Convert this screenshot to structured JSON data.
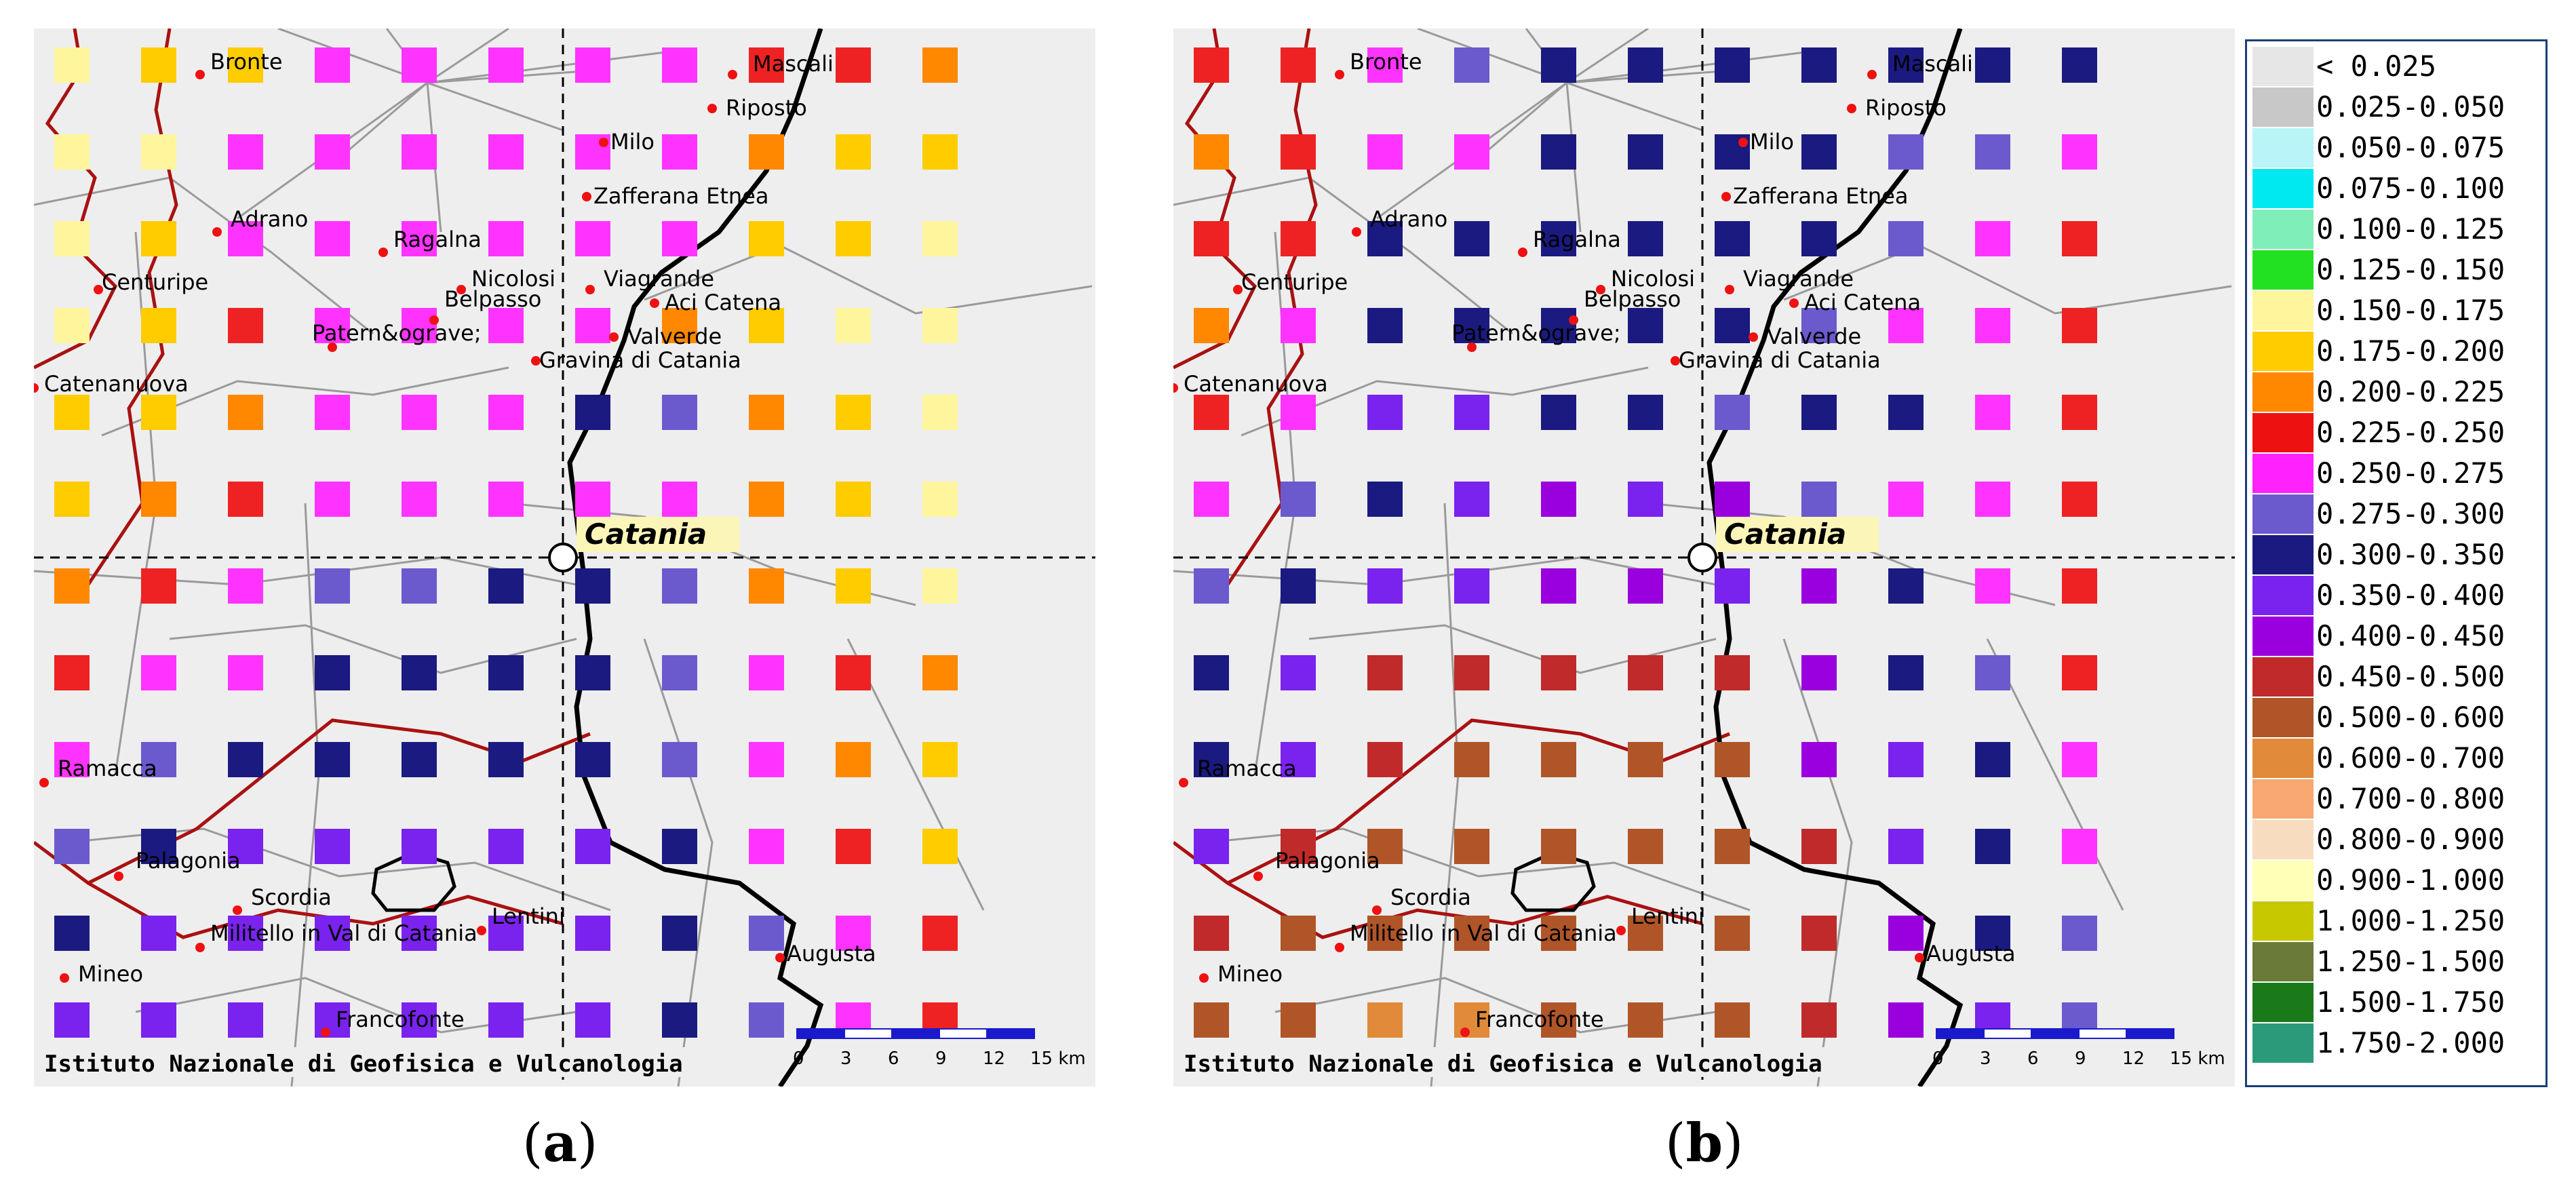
{
  "panels": [
    {
      "id": "a",
      "label": "a",
      "left": "(",
      "right": ")",
      "grid": [
        [
          "fff59d",
          "ffcc00",
          "ffcc00",
          "ff33ff",
          "ff33ff",
          "ff33ff",
          "ff33ff",
          "ff33ff",
          "ee2222",
          "ee2222",
          "ff8800"
        ],
        [
          "fff59d",
          "fff59d",
          "ff33ff",
          "ff33ff",
          "ff33ff",
          "ff33ff",
          "ff33ff",
          "ff33ff",
          "ff8800",
          "ffcc00",
          "ffcc00"
        ],
        [
          "fff59d",
          "ffcc00",
          "ff33ff",
          "ff33ff",
          "ff33ff",
          "ff33ff",
          "ff33ff",
          "ff33ff",
          "ffcc00",
          "ffcc00",
          "fff59d"
        ],
        [
          "fff59d",
          "ffcc00",
          "ee2222",
          "ff33ff",
          "ff33ff",
          "ff33ff",
          "ff33ff",
          "ff8800",
          "ffcc00",
          "fff59d",
          "fff59d"
        ],
        [
          "ffcc00",
          "ffcc00",
          "ff8800",
          "ff33ff",
          "ff33ff",
          "ff33ff",
          "1a1a80",
          "6a5acd",
          "ff8800",
          "ffcc00",
          "fff59d"
        ],
        [
          "ffcc00",
          "ff8800",
          "ee2222",
          "ff33ff",
          "ff33ff",
          "ff33ff",
          "ff33ff",
          "ff33ff",
          "ff8800",
          "ffcc00",
          "fff59d"
        ],
        [
          "ff8800",
          "ee2222",
          "ff33ff",
          "6a5acd",
          "6a5acd",
          "1a1a80",
          "1a1a80",
          "6a5acd",
          "ff8800",
          "ffcc00",
          "fff59d"
        ],
        [
          "ee2222",
          "ff33ff",
          "ff33ff",
          "1a1a80",
          "1a1a80",
          "1a1a80",
          "1a1a80",
          "6a5acd",
          "ff33ff",
          "ee2222",
          "ff8800"
        ],
        [
          "ff33ff",
          "6a5acd",
          "1a1a80",
          "1a1a80",
          "1a1a80",
          "1a1a80",
          "1a1a80",
          "6a5acd",
          "ff33ff",
          "ff8800",
          "ffcc00"
        ],
        [
          "6a5acd",
          "1a1a80",
          "7a22ee",
          "7a22ee",
          "7a22ee",
          "7a22ee",
          "7a22ee",
          "1a1a80",
          "ff33ff",
          "ee2222",
          "ffcc00"
        ],
        [
          "1a1a80",
          "7a22ee",
          "7a22ee",
          "7a22ee",
          "7a22ee",
          "7a22ee",
          "7a22ee",
          "1a1a80",
          "6a5acd",
          "ff33ff",
          "ee2222"
        ],
        [
          "7a22ee",
          "7a22ee",
          "7a22ee",
          "7a22ee",
          "7a22ee",
          "7a22ee",
          "7a22ee",
          "1a1a80",
          "6a5acd",
          "ff33ff",
          "ee2222"
        ]
      ]
    },
    {
      "id": "b",
      "label": "b",
      "left": "(",
      "right": ")",
      "grid": [
        [
          "ee2222",
          "ee2222",
          "ff33ff",
          "6a5acd",
          "1a1a80",
          "1a1a80",
          "1a1a80",
          "1a1a80",
          "1a1a80",
          "1a1a80",
          "1a1a80"
        ],
        [
          "ff8800",
          "ee2222",
          "ff33ff",
          "ff33ff",
          "1a1a80",
          "1a1a80",
          "1a1a80",
          "1a1a80",
          "6a5acd",
          "6a5acd",
          "ff33ff"
        ],
        [
          "ee2222",
          "ee2222",
          "1a1a80",
          "1a1a80",
          "1a1a80",
          "1a1a80",
          "1a1a80",
          "1a1a80",
          "6a5acd",
          "ff33ff",
          "ee2222"
        ],
        [
          "ff8800",
          "ff33ff",
          "1a1a80",
          "1a1a80",
          "1a1a80",
          "1a1a80",
          "1a1a80",
          "6a5acd",
          "ff33ff",
          "ff33ff",
          "ee2222"
        ],
        [
          "ee2222",
          "ff33ff",
          "7a22ee",
          "7a22ee",
          "1a1a80",
          "1a1a80",
          "6a5acd",
          "1a1a80",
          "1a1a80",
          "ff33ff",
          "ee2222"
        ],
        [
          "ff33ff",
          "6a5acd",
          "1a1a80",
          "7a22ee",
          "9a00dd",
          "7a22ee",
          "9a00dd",
          "6a5acd",
          "ff33ff",
          "ff33ff",
          "ee2222"
        ],
        [
          "6a5acd",
          "1a1a80",
          "7a22ee",
          "7a22ee",
          "9a00dd",
          "9a00dd",
          "7a22ee",
          "9a00dd",
          "1a1a80",
          "ff33ff",
          "ee2222"
        ],
        [
          "1a1a80",
          "7a22ee",
          "c02a2a",
          "c02a2a",
          "c02a2a",
          "c02a2a",
          "c02a2a",
          "9a00dd",
          "1a1a80",
          "6a5acd",
          "ee2222"
        ],
        [
          "1a1a80",
          "7a22ee",
          "c02a2a",
          "b05528",
          "b05528",
          "b05528",
          "b05528",
          "9a00dd",
          "7a22ee",
          "1a1a80",
          "ff33ff"
        ],
        [
          "7a22ee",
          "c02a2a",
          "b05528",
          "b05528",
          "b05528",
          "b05528",
          "b05528",
          "c02a2a",
          "7a22ee",
          "1a1a80",
          "ff33ff"
        ],
        [
          "c02a2a",
          "b05528",
          "b05528",
          "b05528",
          "b05528",
          "b05528",
          "b05528",
          "c02a2a",
          "9a00dd",
          "1a1a80",
          "6a5acd"
        ],
        [
          "b05528",
          "b05528",
          "e08a3a",
          "e08a3a",
          "b05528",
          "b05528",
          "b05528",
          "c02a2a",
          "9a00dd",
          "7a22ee",
          "6a5acd"
        ]
      ]
    }
  ],
  "map": {
    "towns": [
      "Bronte",
      "Mascali",
      "Riposto",
      "Milo",
      "Zafferana Etnea",
      "Adrano",
      "Ragalna",
      "Centuripe",
      "Nicolosi",
      "Viagrande",
      "Aci Catena",
      "Belpasso",
      "Valverde",
      "Patern&ograve;",
      "Gravina di Catania",
      "Catenanuova",
      "Ramacca",
      "Palagonia",
      "Scordia",
      "Lentini",
      "Militello in Val di Catania",
      "Augusta",
      "Mineo",
      "Francofonte"
    ],
    "city": "Catania",
    "credit": "Istituto Nazionale di Geofisica e Vulcanologia",
    "scale_ticks": [
      "0",
      "3",
      "6",
      "9",
      "12",
      "15 km"
    ]
  },
  "legend": {
    "items": [
      {
        "label": "< 0.025",
        "color": "#e6e6e6"
      },
      {
        "label": "0.025-0.050",
        "color": "#c8c8c8"
      },
      {
        "label": "0.050-0.075",
        "color": "#b8f4f8"
      },
      {
        "label": "0.075-0.100",
        "color": "#00e8f0"
      },
      {
        "label": "0.100-0.125",
        "color": "#80eeb8"
      },
      {
        "label": "0.125-0.150",
        "color": "#22e022"
      },
      {
        "label": "0.150-0.175",
        "color": "#fff59d"
      },
      {
        "label": "0.175-0.200",
        "color": "#ffcc00"
      },
      {
        "label": "0.200-0.225",
        "color": "#ff8800"
      },
      {
        "label": "0.225-0.250",
        "color": "#ee1111"
      },
      {
        "label": "0.250-0.275",
        "color": "#ff22ff"
      },
      {
        "label": "0.275-0.300",
        "color": "#6a5acd"
      },
      {
        "label": "0.300-0.350",
        "color": "#1a1a80"
      },
      {
        "label": "0.350-0.400",
        "color": "#7a22ee"
      },
      {
        "label": "0.400-0.450",
        "color": "#9a00dd"
      },
      {
        "label": "0.450-0.500",
        "color": "#c02a2a"
      },
      {
        "label": "0.500-0.600",
        "color": "#b05528"
      },
      {
        "label": "0.600-0.700",
        "color": "#e08a3a"
      },
      {
        "label": "0.700-0.800",
        "color": "#f8a870"
      },
      {
        "label": "0.800-0.900",
        "color": "#f8dcc0"
      },
      {
        "label": "0.900-1.000",
        "color": "#ffffb8"
      },
      {
        "label": "1.000-1.250",
        "color": "#c8c800"
      },
      {
        "label": "1.250-1.500",
        "color": "#6a7a38"
      },
      {
        "label": "1.500-1.750",
        "color": "#1a7a1a"
      },
      {
        "label": "1.750-2.000",
        "color": "#2a9a7a"
      }
    ]
  }
}
